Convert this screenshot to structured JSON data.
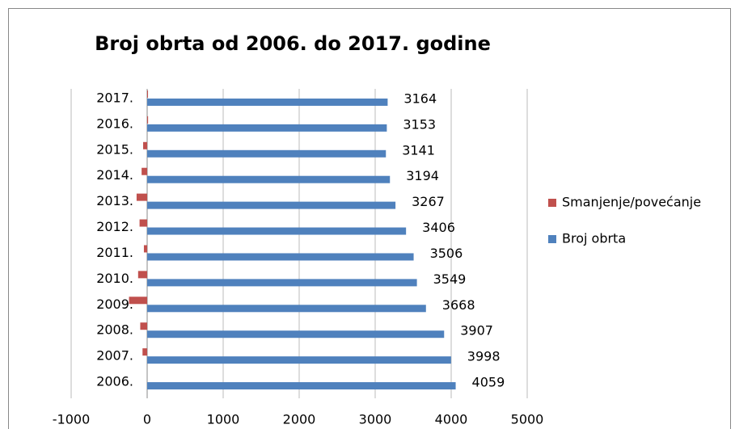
{
  "chart_data": {
    "type": "bar",
    "orientation": "horizontal",
    "title": "Broj obrta od 2006. do 2017. godine",
    "categories": [
      "2006.",
      "2007.",
      "2008.",
      "2009.",
      "2010.",
      "2011.",
      "2012.",
      "2013.",
      "2014.",
      "2015.",
      "2016.",
      "2017."
    ],
    "series": [
      {
        "name": "Smanjenje/povećanje",
        "color": "#c0504d",
        "values": [
          null,
          -61,
          -91,
          -239,
          -119,
          -43,
          -100,
          -139,
          -73,
          -53,
          12,
          11
        ]
      },
      {
        "name": "Broj obrta",
        "color": "#4f81bd",
        "values": [
          4059,
          3998,
          3907,
          3668,
          3549,
          3506,
          3406,
          3267,
          3194,
          3141,
          3153,
          3164
        ]
      }
    ],
    "xlim": [
      -1000,
      5000
    ],
    "xticks": [
      -1000,
      0,
      1000,
      2000,
      3000,
      4000,
      5000
    ],
    "grid": true,
    "legend": "right"
  }
}
